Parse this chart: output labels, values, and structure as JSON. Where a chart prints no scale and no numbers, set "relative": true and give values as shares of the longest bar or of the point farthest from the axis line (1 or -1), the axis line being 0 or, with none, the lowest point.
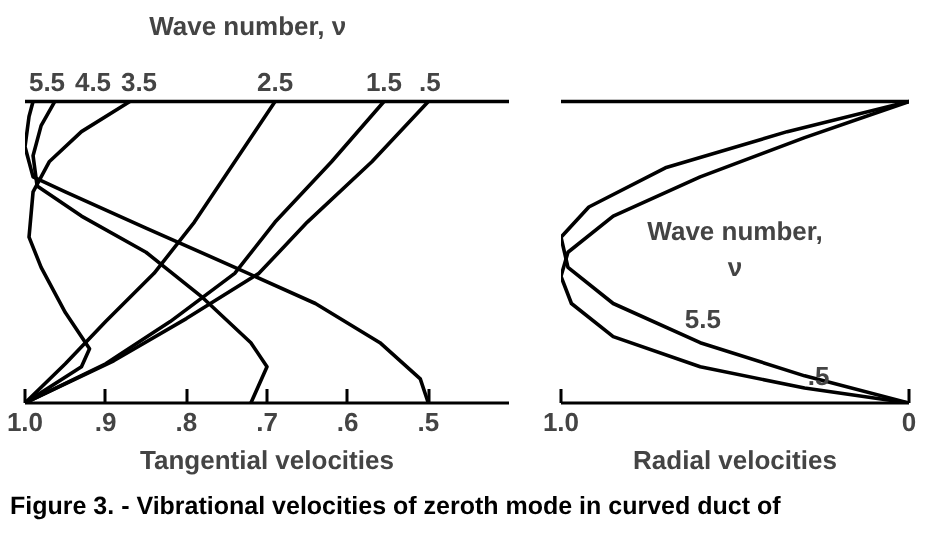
{
  "chart_data": [
    {
      "type": "line",
      "relative": true,
      "legend_title": "Wave number, ν",
      "xlabel": "Tangential velocities",
      "xlim": [
        1.0,
        0.4
      ],
      "xticks": [
        {
          "value": 1.0,
          "label": "1.0"
        },
        {
          "value": 0.9,
          "label": ".9"
        },
        {
          "value": 0.8,
          "label": ".8"
        },
        {
          "value": 0.7,
          "label": ".7"
        },
        {
          "value": 0.6,
          "label": ".6"
        },
        {
          "value": 0.5,
          "label": ".5"
        }
      ],
      "ref_lines": [
        {
          "axis": "y",
          "value": 1
        }
      ],
      "annotations": [
        "0",
        "Figure 3. - Vibrational velocities of zeroth mode in curved duct of"
      ],
      "series": [
        {
          "name": "5.5",
          "color": "#000000",
          "x": [
            0.99,
            0.995,
            1.0,
            0.99,
            0.95,
            0.85,
            0.74,
            0.64,
            0.56,
            0.51,
            0.5
          ],
          "values": [
            1,
            0.95,
            0.85,
            0.75,
            0.7,
            0.58,
            0.45,
            0.33,
            0.2,
            0.08,
            0
          ]
        },
        {
          "name": "4.5",
          "color": "#000000",
          "x": [
            0.963,
            0.98,
            0.99,
            0.985,
            0.93,
            0.85,
            0.78,
            0.72,
            0.7,
            0.72
          ],
          "values": [
            1,
            0.92,
            0.82,
            0.72,
            0.62,
            0.5,
            0.35,
            0.2,
            0.12,
            0
          ]
        },
        {
          "name": "3.5",
          "color": "#000000",
          "x": [
            0.87,
            0.93,
            0.97,
            0.99,
            0.995,
            0.98,
            0.95,
            0.92,
            0.93,
            1.0
          ],
          "values": [
            1,
            0.9,
            0.8,
            0.7,
            0.55,
            0.45,
            0.3,
            0.18,
            0.12,
            0
          ]
        },
        {
          "name": "2.5",
          "color": "#000000",
          "x": [
            0.69,
            0.74,
            0.79,
            0.84,
            0.9,
            0.95,
            1.0
          ],
          "values": [
            1,
            0.8,
            0.6,
            0.43,
            0.27,
            0.13,
            0
          ]
        },
        {
          "name": "1.5",
          "color": "#000000",
          "x": [
            0.555,
            0.62,
            0.69,
            0.74,
            0.82,
            0.9,
            1.0
          ],
          "values": [
            1,
            0.8,
            0.6,
            0.43,
            0.27,
            0.13,
            0
          ]
        },
        {
          "name": ".5",
          "color": "#000000",
          "x": [
            0.5,
            0.57,
            0.65,
            0.71,
            0.8,
            0.89,
            1.0
          ],
          "values": [
            1,
            0.8,
            0.6,
            0.43,
            0.28,
            0.14,
            0
          ]
        }
      ]
    },
    {
      "type": "line",
      "relative": true,
      "legend_title": "Wave number, ν",
      "xlabel": "Radial velocities",
      "xlim": [
        1.0,
        0.0
      ],
      "xticks": [
        {
          "value": 1.0,
          "label": "1.0"
        },
        0
      ],
      "ref_lines": [
        {
          "axis": "y",
          "value": 1
        }
      ],
      "series": [
        {
          "name": ".5",
          "color": "#000000",
          "x": [
            0,
            0.3,
            0.6,
            0.85,
            0.98,
            1.0,
            0.97,
            0.85,
            0.6,
            0.3,
            0
          ],
          "values": [
            1,
            0.88,
            0.75,
            0.62,
            0.5,
            0.42,
            0.33,
            0.22,
            0.12,
            0.05,
            0
          ]
        },
        {
          "name": "5.5",
          "color": "#000000",
          "x": [
            0,
            0.35,
            0.7,
            0.92,
            1.0,
            0.98,
            0.85,
            0.6,
            0.3,
            0
          ],
          "values": [
            1,
            0.9,
            0.78,
            0.65,
            0.55,
            0.45,
            0.33,
            0.2,
            0.09,
            0
          ]
        }
      ]
    }
  ]
}
